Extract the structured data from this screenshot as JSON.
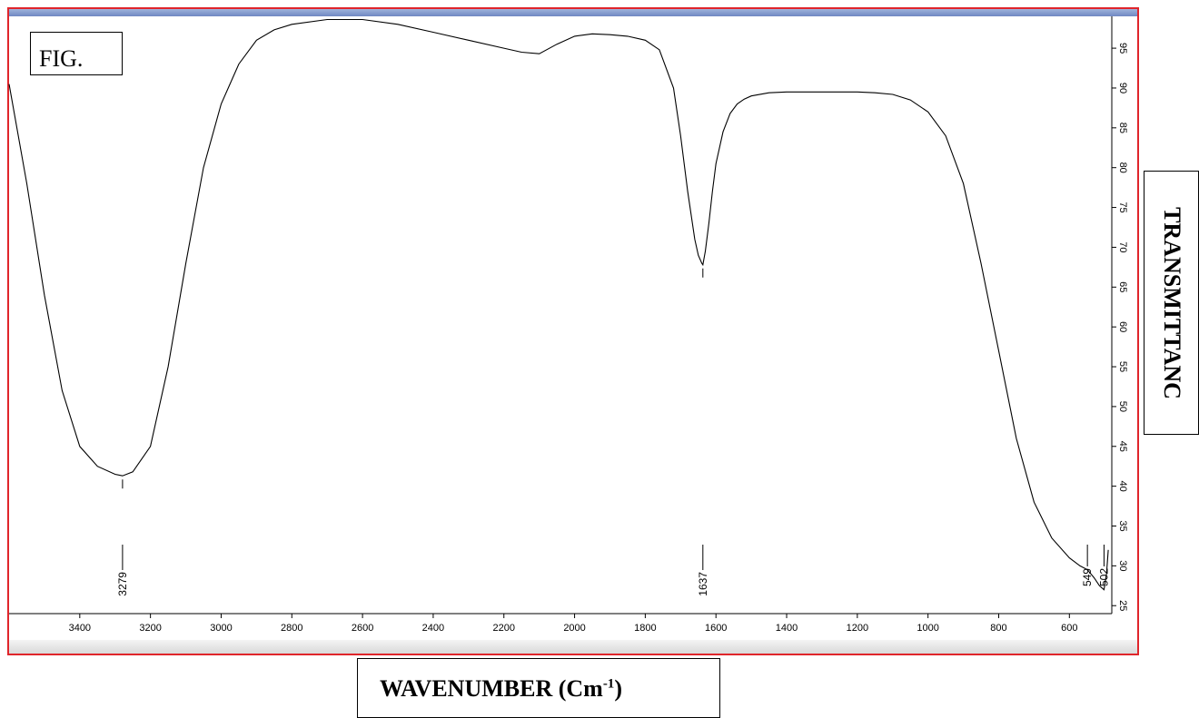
{
  "chart_data": {
    "type": "line",
    "figure_label": "FIG.",
    "xlabel": {
      "main": "WAVENUMBER (Cm",
      "sup": "-1",
      "close": ")"
    },
    "ylabel": "TRANSMITTANC",
    "xlim": [
      3600,
      480
    ],
    "ylim": [
      24,
      99
    ],
    "x_ticks": [
      3400,
      3200,
      3000,
      2800,
      2600,
      2400,
      2200,
      2000,
      1800,
      1600,
      1400,
      1200,
      1000,
      800,
      600
    ],
    "y_ticks": [
      25,
      30,
      35,
      40,
      45,
      50,
      55,
      60,
      65,
      70,
      75,
      80,
      85,
      90,
      95
    ],
    "series": [
      {
        "x": [
          3600,
          3550,
          3500,
          3450,
          3400,
          3350,
          3300,
          3279,
          3250,
          3200,
          3150,
          3100,
          3050,
          3000,
          2950,
          2900,
          2850,
          2800,
          2700,
          2600,
          2500,
          2400,
          2300,
          2200,
          2150,
          2100,
          2050,
          2000,
          1950,
          1900,
          1850,
          1800,
          1760,
          1720,
          1700,
          1680,
          1660,
          1650,
          1640,
          1637,
          1630,
          1620,
          1610,
          1600,
          1580,
          1560,
          1540,
          1520,
          1500,
          1450,
          1400,
          1300,
          1200,
          1150,
          1100,
          1050,
          1000,
          950,
          900,
          850,
          800,
          750,
          700,
          650,
          600,
          570,
          549,
          530,
          515,
          502,
          495,
          490
        ],
        "y": [
          90.5,
          78,
          64,
          52,
          45,
          42.5,
          41.5,
          41.3,
          41.8,
          45,
          55,
          68,
          80,
          88,
          93,
          96,
          97.3,
          98,
          98.6,
          98.6,
          98,
          97,
          96,
          95,
          94.5,
          94.3,
          95.5,
          96.5,
          96.8,
          96.7,
          96.5,
          96,
          94.8,
          90,
          84,
          77,
          71,
          69,
          68,
          67.8,
          69.5,
          73,
          77,
          80.5,
          84.5,
          86.8,
          88,
          88.6,
          89,
          89.4,
          89.5,
          89.5,
          89.5,
          89.4,
          89.2,
          88.5,
          87,
          84,
          78,
          68,
          57,
          46,
          38,
          33.5,
          31,
          30,
          29.5,
          28.5,
          27.5,
          27,
          29,
          32
        ]
      }
    ],
    "peaks": [
      {
        "label": "3279",
        "x": 3279,
        "y": 41.3
      },
      {
        "label": "1637",
        "x": 1637,
        "y": 67.8
      },
      {
        "label": "549",
        "x": 549,
        "y": 29.5
      },
      {
        "label": "502",
        "x": 502,
        "y": 27
      }
    ]
  }
}
